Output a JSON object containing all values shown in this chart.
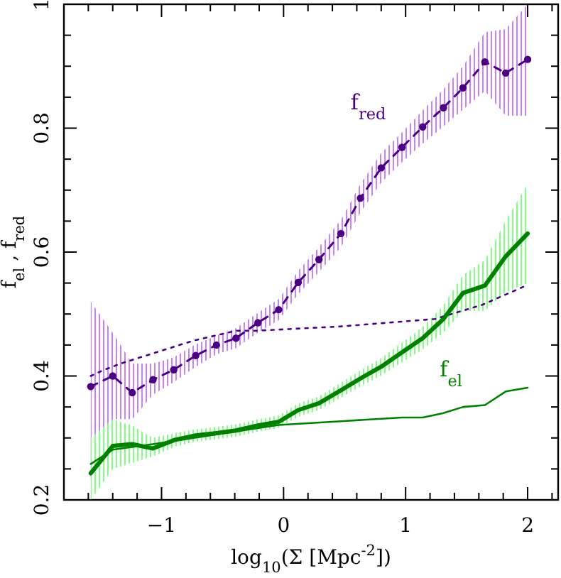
{
  "chart_data": {
    "type": "line",
    "xlabel": "log$_{10}$(Σ [Mpc$^{-2}$])",
    "ylabel": "f$_{el}$ , f$_{red}$",
    "xlim": [
      -1.8,
      2.25
    ],
    "ylim": [
      0.2,
      1
    ],
    "xticks": [
      {
        "value": -1.8,
        "label": null
      },
      {
        "value": -1.6,
        "label": null
      },
      {
        "value": -1.4,
        "label": null
      },
      {
        "value": -1.2,
        "label": null
      },
      {
        "value": -1,
        "label": "−1"
      },
      {
        "value": -0.8,
        "label": null
      },
      {
        "value": -0.6,
        "label": null
      },
      {
        "value": -0.4,
        "label": null
      },
      {
        "value": -0.2,
        "label": null
      },
      0,
      {
        "value": 0.2,
        "label": null
      },
      {
        "value": 0.4,
        "label": null
      },
      {
        "value": 0.6,
        "label": null
      },
      {
        "value": 0.8,
        "label": null
      },
      1,
      {
        "value": 1.2,
        "label": null
      },
      {
        "value": 1.4,
        "label": null
      },
      {
        "value": 1.6,
        "label": null
      },
      {
        "value": 1.8,
        "label": null
      },
      2,
      {
        "value": 2.2,
        "label": null
      }
    ],
    "yticks": [
      0.2,
      {
        "value": 0.25,
        "label": null
      },
      {
        "value": 0.3,
        "label": null
      },
      {
        "value": 0.35,
        "label": null
      },
      0.4,
      {
        "value": 0.45,
        "label": null
      },
      {
        "value": 0.5,
        "label": null
      },
      {
        "value": 0.55,
        "label": null
      },
      0.6,
      {
        "value": 0.65,
        "label": null
      },
      {
        "value": 0.7,
        "label": null
      },
      {
        "value": 0.75,
        "label": null
      },
      0.8,
      {
        "value": 0.85,
        "label": null
      },
      {
        "value": 0.9,
        "label": null
      },
      {
        "value": 0.95,
        "label": null
      },
      1
    ],
    "series": [
      {
        "name": "f$_{red}$",
        "color": "#4b0082",
        "marker": "circle",
        "line_style": "dashed",
        "x": [
          -1.58,
          -1.4,
          -1.24,
          -1.07,
          -0.9,
          -0.72,
          -0.55,
          -0.39,
          -0.21,
          -0.04,
          0.12,
          0.29,
          0.47,
          0.63,
          0.8,
          0.97,
          1.14,
          1.31,
          1.47,
          1.65,
          1.82,
          2.0
        ],
        "values": [
          0.383,
          0.4,
          0.373,
          0.394,
          0.41,
          0.433,
          0.45,
          0.461,
          0.486,
          0.507,
          0.551,
          0.588,
          0.63,
          0.687,
          0.736,
          0.769,
          0.802,
          0.833,
          0.865,
          0.907,
          0.889,
          0.911
        ],
        "lower": [
          0.23,
          0.33,
          0.33,
          0.37,
          0.39,
          0.415,
          0.435,
          0.445,
          0.47,
          0.49,
          0.532,
          0.568,
          0.608,
          0.664,
          0.712,
          0.745,
          0.775,
          0.803,
          0.83,
          0.86,
          0.82,
          0.82
        ],
        "upper": [
          0.52,
          0.47,
          0.42,
          0.42,
          0.43,
          0.451,
          0.465,
          0.477,
          0.502,
          0.524,
          0.57,
          0.608,
          0.652,
          0.71,
          0.76,
          0.793,
          0.829,
          0.863,
          0.9,
          0.955,
          0.96,
          1.0
        ]
      },
      {
        "color": "#4b0082",
        "marker": "none",
        "line_style": "dotted",
        "x": [
          -1.58,
          -1.47,
          -1.32,
          -0.74,
          -0.39,
          -0.23,
          0.47,
          1.24,
          1.63,
          2.0
        ],
        "values": [
          0.4,
          0.41,
          0.421,
          0.457,
          0.473,
          0.473,
          0.48,
          0.492,
          0.515,
          0.547
        ]
      },
      {
        "name": "f$_{el}$",
        "color": "#008000",
        "marker": "none",
        "line_style": "solid",
        "x": [
          -1.58,
          -1.4,
          -1.24,
          -1.07,
          -0.89,
          -0.72,
          -0.54,
          -0.39,
          -0.21,
          -0.04,
          0.12,
          0.29,
          0.47,
          0.63,
          0.8,
          0.97,
          1.14,
          1.31,
          1.47,
          1.65,
          1.82,
          2.0
        ],
        "values": [
          0.243,
          0.287,
          0.29,
          0.283,
          0.297,
          0.304,
          0.308,
          0.312,
          0.32,
          0.326,
          0.345,
          0.356,
          0.377,
          0.396,
          0.415,
          0.438,
          0.461,
          0.492,
          0.534,
          0.546,
          0.593,
          0.63
        ],
        "lower": [
          0.2,
          0.25,
          0.26,
          0.27,
          0.286,
          0.294,
          0.298,
          0.302,
          0.31,
          0.316,
          0.334,
          0.345,
          0.365,
          0.383,
          0.401,
          0.422,
          0.443,
          0.47,
          0.505,
          0.505,
          0.535,
          0.55
        ],
        "upper": [
          0.3,
          0.33,
          0.32,
          0.3,
          0.308,
          0.314,
          0.318,
          0.322,
          0.33,
          0.336,
          0.356,
          0.367,
          0.389,
          0.409,
          0.429,
          0.454,
          0.479,
          0.514,
          0.563,
          0.587,
          0.651,
          0.71
        ]
      },
      {
        "color": "#008000",
        "marker": "none",
        "line_style": "solid",
        "x": [
          -1.58,
          -1.4,
          -1.07,
          -0.54,
          -0.04,
          0.47,
          0.97,
          1.14,
          1.31,
          1.47,
          1.65,
          1.82,
          2.0
        ],
        "values": [
          0.258,
          0.281,
          0.29,
          0.306,
          0.321,
          0.327,
          0.333,
          0.333,
          0.34,
          0.35,
          0.353,
          0.375,
          0.381
        ]
      }
    ],
    "grid": false
  }
}
